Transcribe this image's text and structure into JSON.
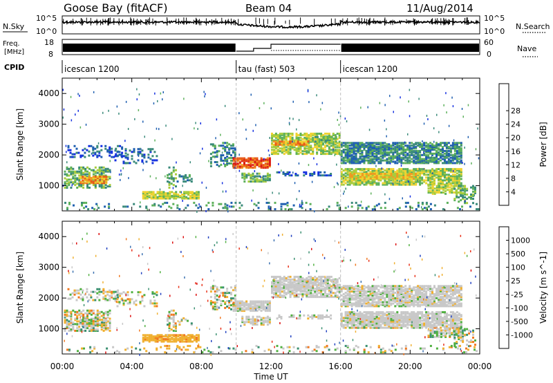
{
  "header": {
    "station": "Goose Bay (fitACF)",
    "beam": "Beam 04",
    "date": "11/Aug/2014"
  },
  "noise_panel": {
    "left_label": "N.Sky",
    "right_label": "N.Search",
    "tick_top": "10^5",
    "tick_bottom": "10^0"
  },
  "freq_panel": {
    "left_label_top": "Freq.",
    "left_label_bottom": "[MHz]",
    "left_tick_top": "18",
    "left_tick_bottom": "8",
    "right_label": "Nave",
    "right_tick_top": "60",
    "right_tick_bottom": "0"
  },
  "cpid": {
    "label": "CPID",
    "segments": [
      {
        "name": "icescan 1200",
        "start_hour": 0,
        "end_hour": 10
      },
      {
        "name": "tau (fast) 503",
        "start_hour": 10,
        "end_hour": 16
      },
      {
        "name": "icescan 1200",
        "start_hour": 16,
        "end_hour": 24
      }
    ]
  },
  "chart_data": [
    {
      "type": "heatmap",
      "name": "power",
      "ylabel": "Slant Range [km]",
      "x_range_hours": [
        0,
        24
      ],
      "ylim": [
        180,
        4500
      ],
      "yticks": [
        1000,
        2000,
        3000,
        4000
      ],
      "colorbar": {
        "label": "Power [dB]",
        "ticks": [
          "4",
          "8",
          "12",
          "16",
          "20",
          "24",
          "28"
        ],
        "colors": [
          "#1530e0",
          "#1f5fb0",
          "#3a8a7a",
          "#5cb05a",
          "#a8cc3c",
          "#f0d230",
          "#f09a20",
          "#e85a18",
          "#dc1c14"
        ]
      }
    },
    {
      "type": "heatmap",
      "name": "velocity",
      "ylabel": "Slant Range [km]",
      "xlabel": "Time UT",
      "x_range_hours": [
        0,
        24
      ],
      "xticks": [
        "00:00",
        "04:00",
        "08:00",
        "12:00",
        "16:00",
        "20:00",
        "00:00"
      ],
      "ylim": [
        180,
        4500
      ],
      "yticks": [
        1000,
        2000,
        3000,
        4000
      ],
      "colorbar": {
        "label": "Velocity [m s^-1]",
        "ticks": [
          "1000",
          "500",
          "100",
          "25",
          "-25",
          "-100",
          "-500",
          "-1000"
        ],
        "colors": [
          "#2040c0",
          "#3a70b0",
          "#3a9070",
          "#50b040",
          "#c8c8c8",
          "#f0b030",
          "#f07820",
          "#e83018",
          "#dc0c0c"
        ]
      }
    }
  ]
}
